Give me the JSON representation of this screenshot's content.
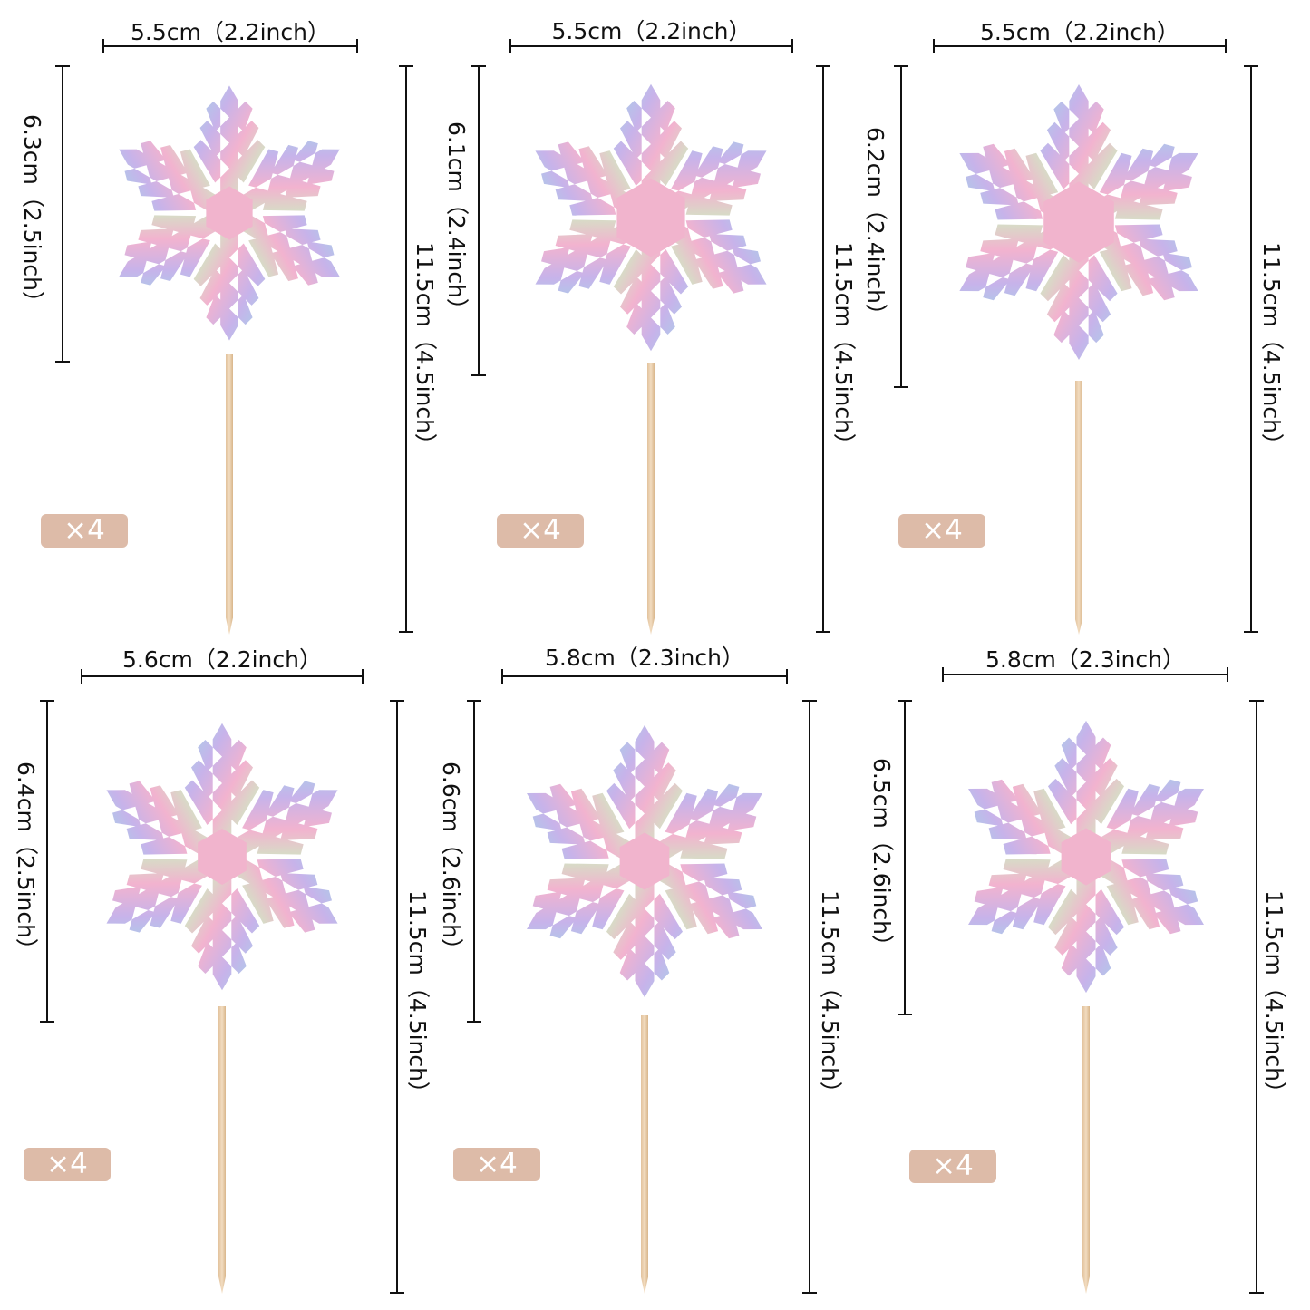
{
  "badge_color": "#ddbba8",
  "panels": [
    {
      "width_label": "5.5cm（2.2inch）",
      "height_label": "6.3cm（2.5inch）",
      "total_label": "11.5cm（4.5inch）",
      "count": "×4",
      "style": "dots"
    },
    {
      "width_label": "5.5cm（2.2inch）",
      "height_label": "6.1cm（2.4inch）",
      "total_label": "11.5cm（4.5inch）",
      "count": "×4",
      "style": "hex"
    },
    {
      "width_label": "5.5cm（2.2inch）",
      "height_label": "6.2cm（2.4inch）",
      "total_label": "11.5cm（4.5inch）",
      "count": "×4",
      "style": "fern"
    },
    {
      "width_label": "5.6cm（2.2inch）",
      "height_label": "6.4cm（2.5inch）",
      "total_label": "11.5cm（4.5inch）",
      "count": "×4",
      "style": "lobed"
    },
    {
      "width_label": "5.8cm（2.3inch）",
      "height_label": "6.6cm（2.6inch）",
      "total_label": "11.5cm（4.5inch）",
      "count": "×4",
      "style": "lace"
    },
    {
      "width_label": "5.8cm（2.3inch）",
      "height_label": "6.5cm（2.6inch）",
      "total_label": "11.5cm（4.5inch）",
      "count": "×4",
      "style": "star"
    }
  ]
}
